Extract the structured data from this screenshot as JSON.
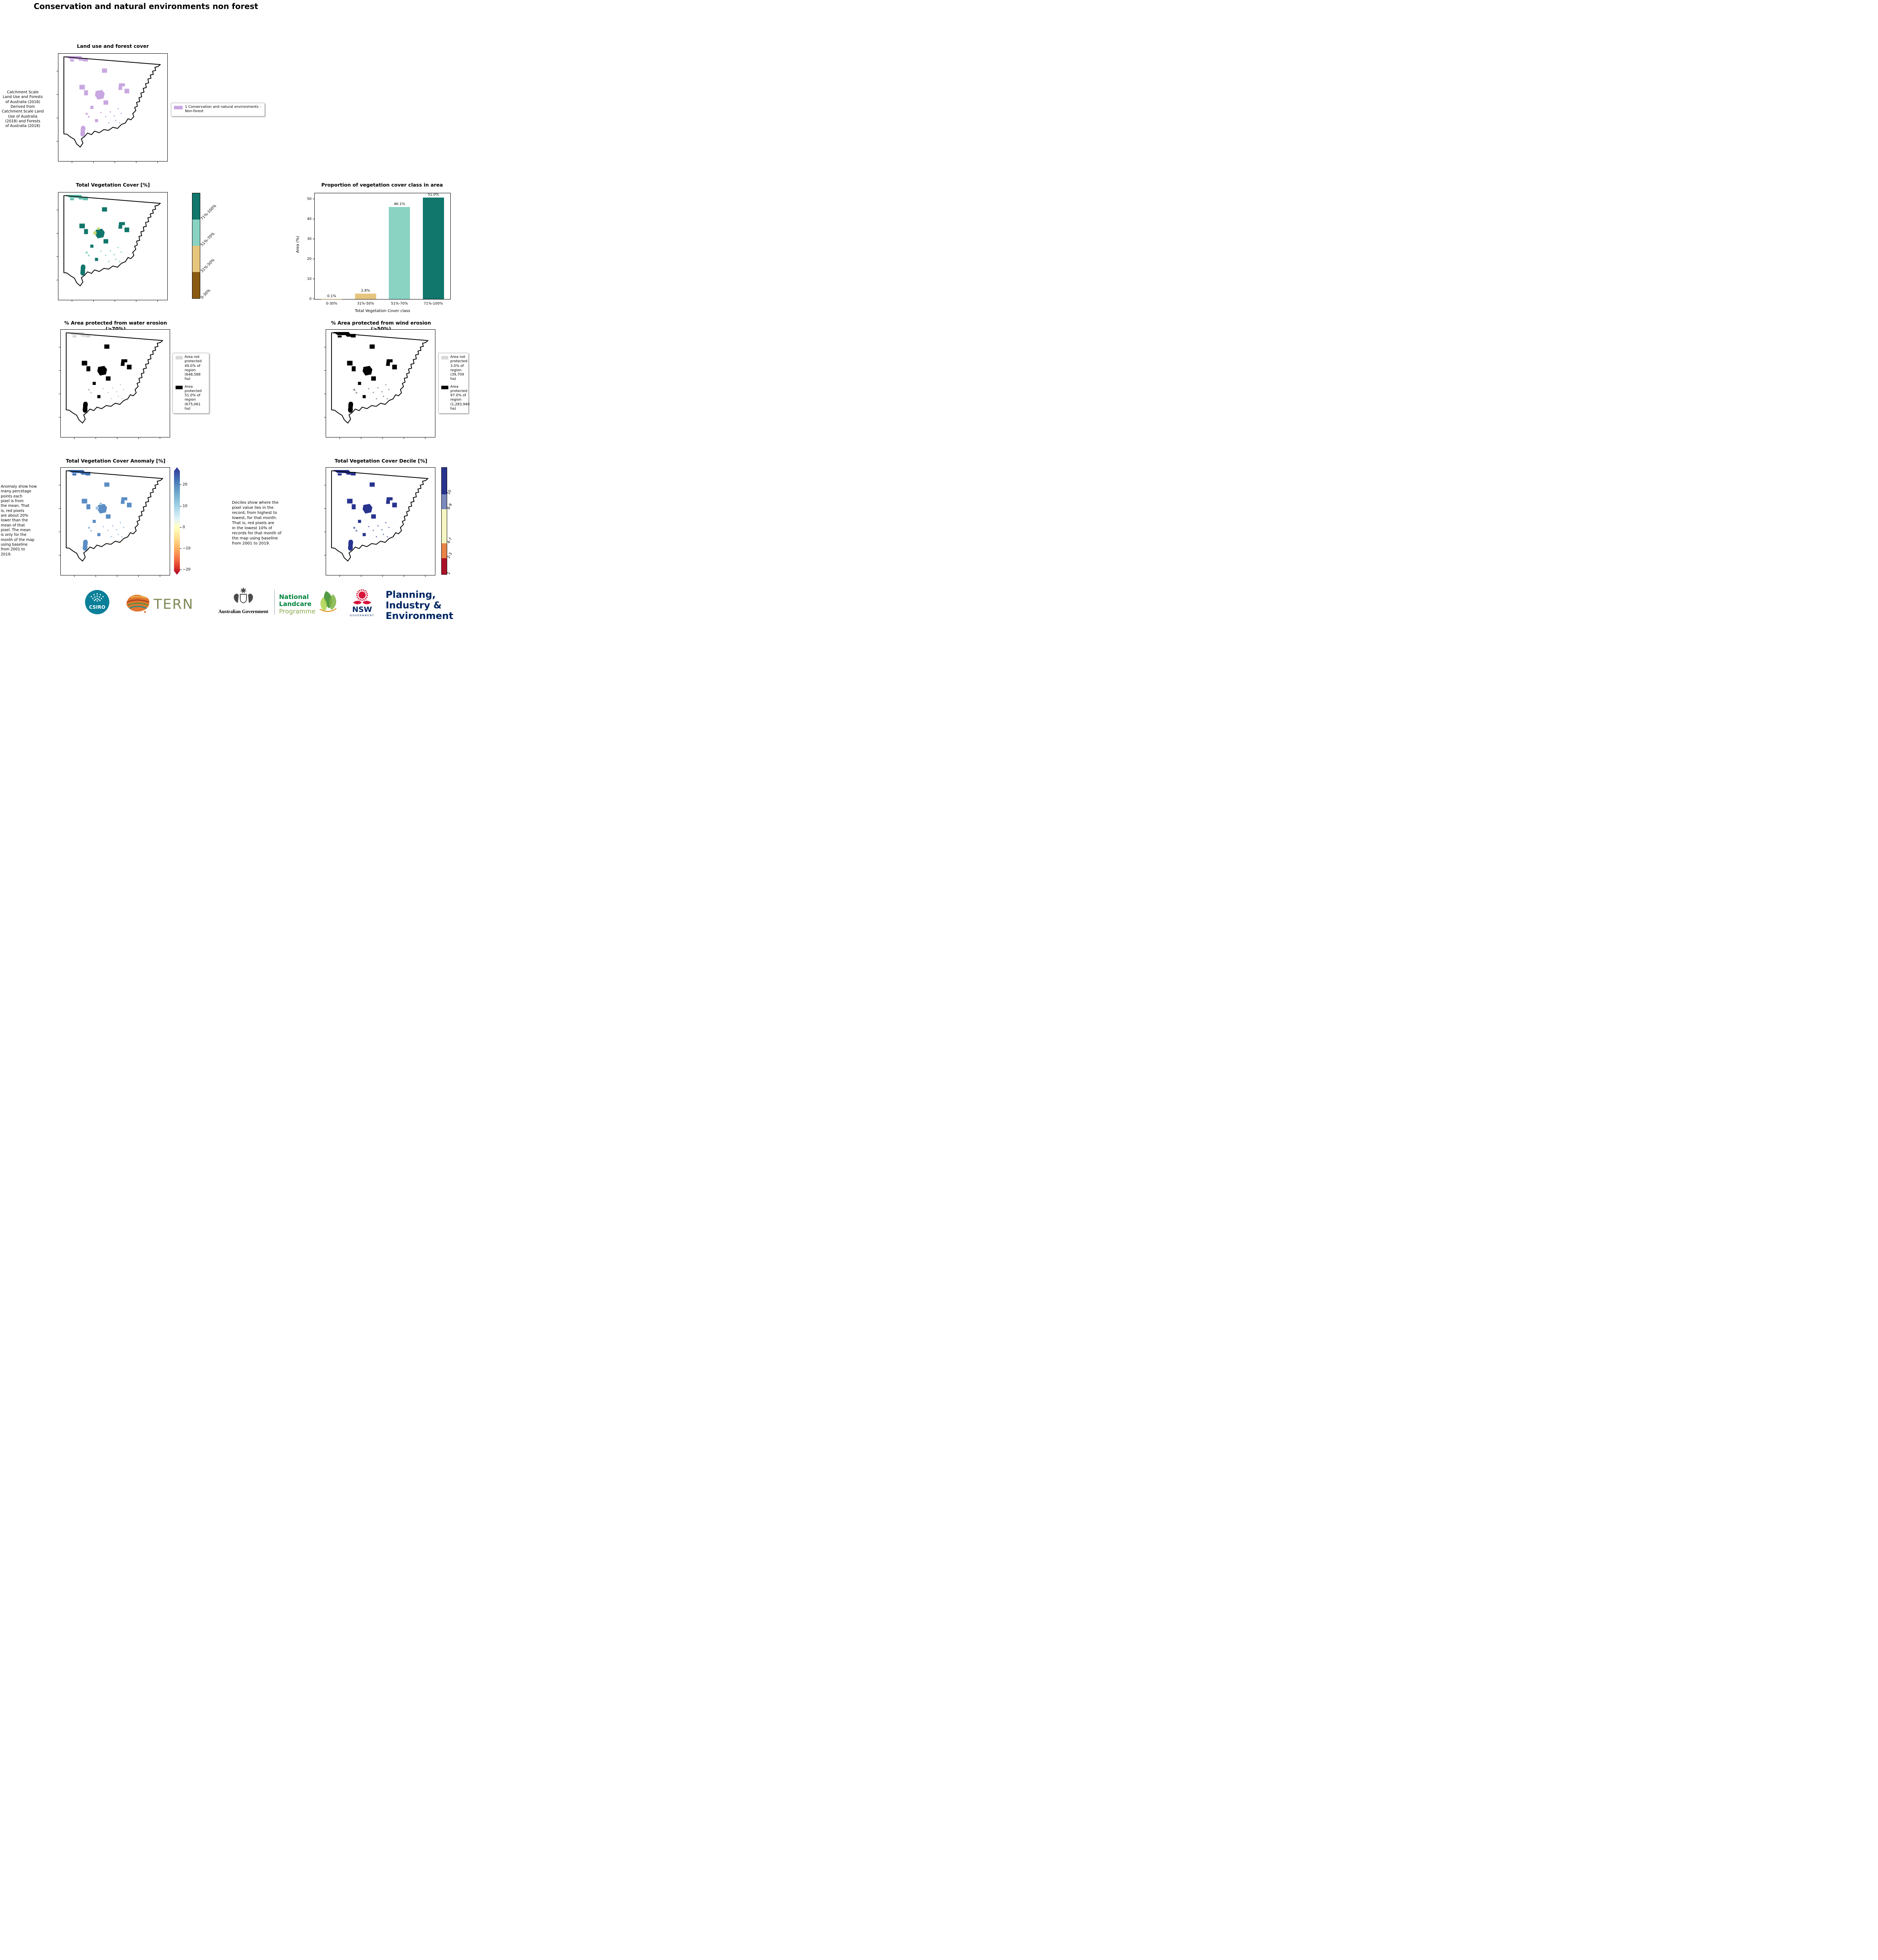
{
  "page": {
    "title": "Conservation and natural environments non forest"
  },
  "colors": {
    "landuse": "#c9a7e0",
    "veg_top_mix": "#63bfae",
    "veg_class_dark": "#11766b",
    "veg_class_light": "#8ad3c3",
    "veg_class_tan": "#e6c57e",
    "veg_class_brown": "#8a5a12",
    "veg_accent": "#c8d96e",
    "protected": "#000000",
    "not_protected": "#d8d8d8",
    "anomaly_top": "#3f6fb5",
    "anomaly_main": "#5b8ec4",
    "anomaly_light": "#a5c5e2",
    "decile_main": "#27338f",
    "decile_light": "#7884bb"
  },
  "landuse": {
    "title": "Land use and forest cover",
    "note": "Catchment Scale\nLand Use and Forests\nof Australia (2018)\nDerived from\nCatchment Scale Land\nUse of Australia\n(2018) and Forests\nof Australia (2018)",
    "legend_label": "1 Conservation and natural environments - Non-forest"
  },
  "vegcover": {
    "title": "Total Vegetation Cover [%]",
    "colorbar": [
      {
        "label": "71%-100%",
        "color": "#11766b"
      },
      {
        "label": "51%-70%",
        "color": "#8ad3c3"
      },
      {
        "label": "31%-50%",
        "color": "#e6c57e"
      },
      {
        "label": "0-30%",
        "color": "#8a5a12"
      }
    ]
  },
  "chart_data": {
    "type": "bar",
    "title": "Proportion of vegetation cover class in area",
    "categories": [
      "0-30%",
      "31%-50%",
      "51%-70%",
      "71%-100%"
    ],
    "values": [
      0.1,
      2.8,
      46.1,
      51.0
    ],
    "value_labels": [
      "0.1%",
      "2.8%",
      "46.1%",
      "51.0%"
    ],
    "bar_colors": [
      "#8a5a12",
      "#e6c57e",
      "#8ad3c3",
      "#11766b"
    ],
    "xlabel": "Total Vegetation Cover class",
    "ylabel": "Area (%)",
    "ylim": [
      0,
      53
    ],
    "yticks": [
      0,
      10,
      20,
      30,
      40,
      50
    ],
    "grid": false,
    "legend_position": "none"
  },
  "water": {
    "title": "% Area protected from water erosion (>70%)",
    "legend": [
      {
        "label": "Area not\nprotected\n49.0% of\nregion\n(648,588\nha)",
        "color": "#d8d8d8"
      },
      {
        "label": "Area\nprotected\n51.0% of\nregion\n(675,061\nha)",
        "color": "#000000"
      }
    ]
  },
  "wind": {
    "title": "% Area protected from wind erosion (>50%)",
    "legend": [
      {
        "label": "Area not\nprotected\n3.0% of\nregion\n(39,709\nha)",
        "color": "#d8d8d8"
      },
      {
        "label": "Area\nprotected\n97.0% of\nregion\n(1,283,940\nha)",
        "color": "#000000"
      }
    ]
  },
  "anomaly": {
    "title": "Total Vegetation Cover Anomaly [%]",
    "note": "Anomaly show how\nmany percetage\npoints each\npixel is from\nthe mean. That\nis, red pixels\nare about 20%\nlower than the\nmean of that\npixel. The mean\nis only for the\nmonth of the map\nusing baseline\nfrom 2001 to\n2019.",
    "colorbar_ticks": [
      20,
      10,
      0,
      -10,
      -20
    ]
  },
  "decile": {
    "title": "Total Vegetation Cover Decile [%]",
    "note": "Deciles show where the\npixel value lies in the\nrecord, from highest to\nlowest, for that month.\nThat is, red pixels are\nin the lowest 10% of\nrecords for that month of\nthe map using baseline\nfrom 2001 to 2019.",
    "colorbar": [
      {
        "label": "10",
        "color": "#28338e",
        "size": 25
      },
      {
        "label": "8-9",
        "color": "#7b89bd",
        "size": 14
      },
      {
        "label": "4-7",
        "color": "#f6f6c3",
        "size": 32
      },
      {
        "label": "2-3",
        "color": "#e98346",
        "size": 14
      },
      {
        "label": "1",
        "color": "#ab1126",
        "size": 15
      }
    ]
  },
  "logos": {
    "csiro": "CSIRO",
    "tern": "TERN",
    "aus_gov": "Australian Government",
    "landcare_1": "National",
    "landcare_2": "Landcare",
    "landcare_3": "Programme",
    "nsw": "NSW",
    "nsw_sub": "GOVERNMENT",
    "planning_1": "Planning,",
    "planning_2": "Industry &",
    "planning_3": "Environment"
  }
}
